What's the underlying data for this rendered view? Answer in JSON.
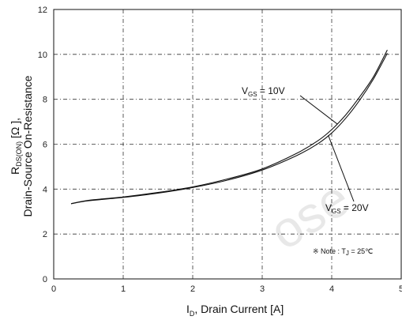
{
  "chart_data": {
    "type": "line",
    "xlim": [
      0,
      5
    ],
    "ylim": [
      0,
      12
    ],
    "x_ticks": [
      0,
      1,
      2,
      3,
      4,
      5
    ],
    "y_ticks": [
      0,
      2,
      4,
      6,
      8,
      10,
      12
    ],
    "grid": true,
    "legend": "none",
    "xlabel": {
      "main": "I",
      "sub": "D",
      "rest": ", Drain Current [A]"
    },
    "ylabel": {
      "line1_main": "R",
      "line1_sub": "DS(ON)",
      "line1_rest": " [Ω ],",
      "line2": "Drain-Source On-Resistance"
    },
    "series": [
      {
        "name": "VGS = 10V",
        "x": [
          0.25,
          0.5,
          1.0,
          1.5,
          2.0,
          2.5,
          3.0,
          3.5,
          3.8,
          4.0,
          4.2,
          4.4,
          4.6,
          4.8
        ],
        "y": [
          3.35,
          3.5,
          3.65,
          3.85,
          4.1,
          4.45,
          4.9,
          5.6,
          6.15,
          6.65,
          7.3,
          8.1,
          9.0,
          10.2
        ]
      },
      {
        "name": "VGS = 20V",
        "x": [
          0.25,
          0.5,
          1.0,
          1.5,
          2.0,
          2.5,
          3.0,
          3.5,
          3.8,
          4.0,
          4.2,
          4.4,
          4.6,
          4.8
        ],
        "y": [
          3.35,
          3.48,
          3.63,
          3.82,
          4.07,
          4.4,
          4.85,
          5.5,
          6.02,
          6.5,
          7.15,
          7.95,
          8.9,
          10.05
        ]
      }
    ],
    "annotations": [
      {
        "main": "V",
        "sub": "GS",
        "rest": " = 10V",
        "target_x": 4.08,
        "target_y": 6.9
      },
      {
        "main": "V",
        "sub": "GS",
        "rest": " = 20V",
        "target_x": 3.95,
        "target_y": 6.4
      }
    ],
    "note": {
      "prefix": "※ Note : T",
      "sub": "J",
      "rest": " = 25℃"
    }
  },
  "watermark": "ose"
}
